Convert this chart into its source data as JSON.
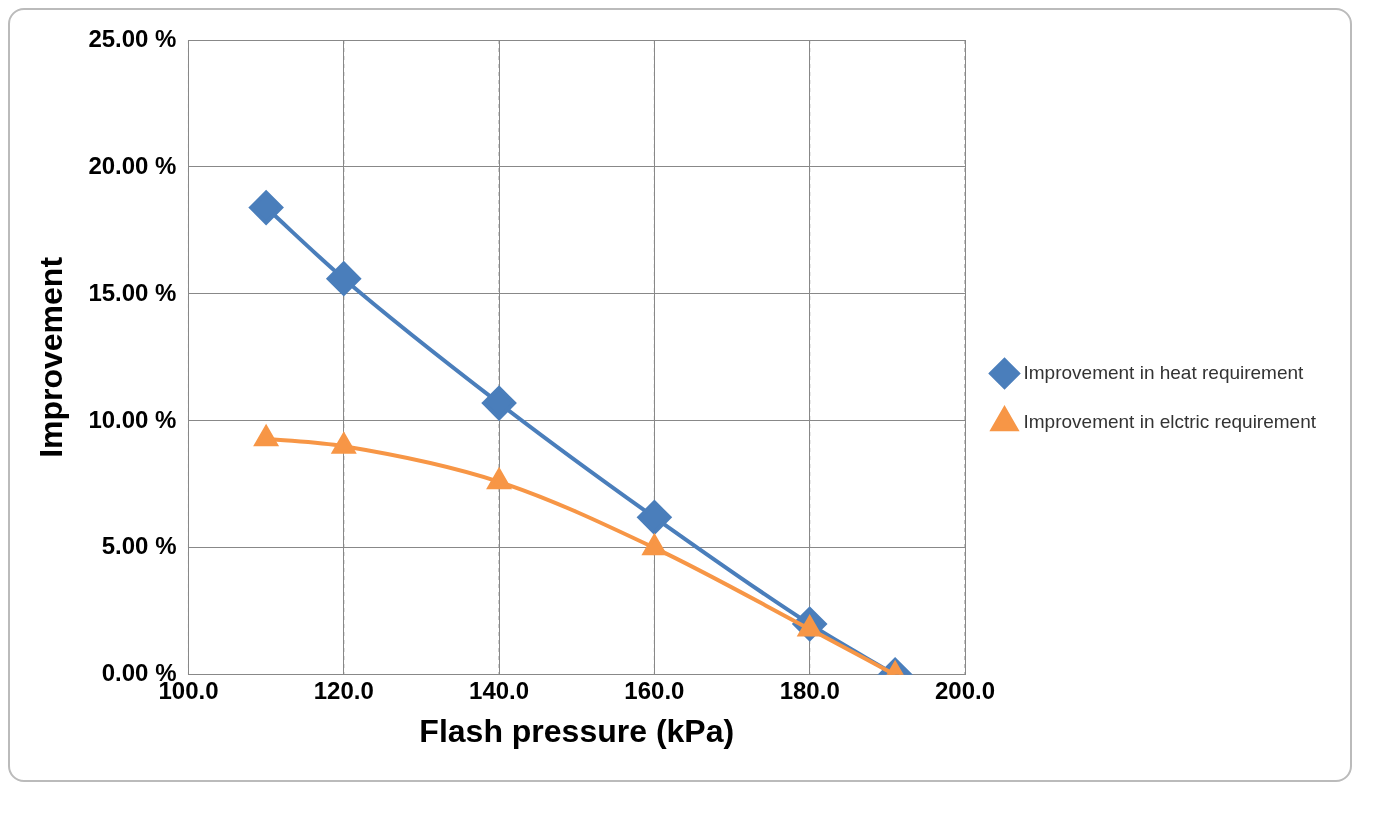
{
  "chart_data": {
    "type": "line",
    "xlabel": "Flash pressure (kPa)",
    "ylabel": "Improvement",
    "xlim": [
      100,
      200
    ],
    "xticks": [
      {
        "value": 100,
        "label": "100.0"
      },
      {
        "value": 120,
        "label": "120.0"
      },
      {
        "value": 140,
        "label": "140.0"
      },
      {
        "value": 160,
        "label": "160.0"
      },
      {
        "value": 180,
        "label": "180.0"
      },
      {
        "value": 200,
        "label": "200.0"
      }
    ],
    "ylim": [
      0,
      25
    ],
    "yticks": [
      {
        "value": 0,
        "label": "0.00 %"
      },
      {
        "value": 5,
        "label": "5.00 %"
      },
      {
        "value": 10,
        "label": "10.00 %"
      },
      {
        "value": 15,
        "label": "15.00 %"
      },
      {
        "value": 20,
        "label": "20.00 %"
      },
      {
        "value": 25,
        "label": "25.00 %"
      }
    ],
    "x": [
      110,
      120,
      140,
      160,
      180,
      191
    ],
    "series": [
      {
        "name": "Improvement in heat requirement",
        "color": "#4a7ebb",
        "marker": "diamond",
        "values": [
          18.4,
          15.6,
          10.7,
          6.2,
          2.0,
          0
        ]
      },
      {
        "name": "Improvement in elctric requirement",
        "color": "#f79646",
        "marker": "triangle",
        "values": [
          9.3,
          9.0,
          7.6,
          5.0,
          1.8,
          0
        ]
      }
    ],
    "grid": true,
    "legend": "right",
    "line_style": "solid"
  }
}
